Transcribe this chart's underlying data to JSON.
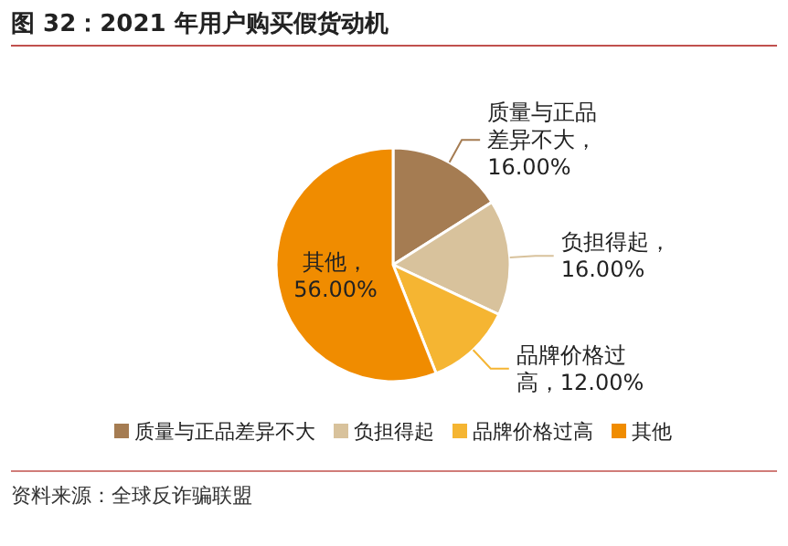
{
  "chart_data": {
    "type": "pie",
    "title": "图 32：2021 年用户购买假货动机",
    "categories": [
      "质量与正品差异不大",
      "负担得起",
      "品牌价格过高",
      "其他"
    ],
    "values": [
      16,
      16,
      12,
      56
    ],
    "colors": [
      "#a57c52",
      "#d8c29c",
      "#f5b532",
      "#f08c00"
    ],
    "value_labels": [
      "质量与正品差异不大，16.00%",
      "负担得起，16.00%",
      "品牌价格过高，12.00%",
      "其他，56.00%"
    ],
    "legend": "bottom",
    "annotations": [
      "资料来源：全球反诈骗联盟"
    ]
  }
}
